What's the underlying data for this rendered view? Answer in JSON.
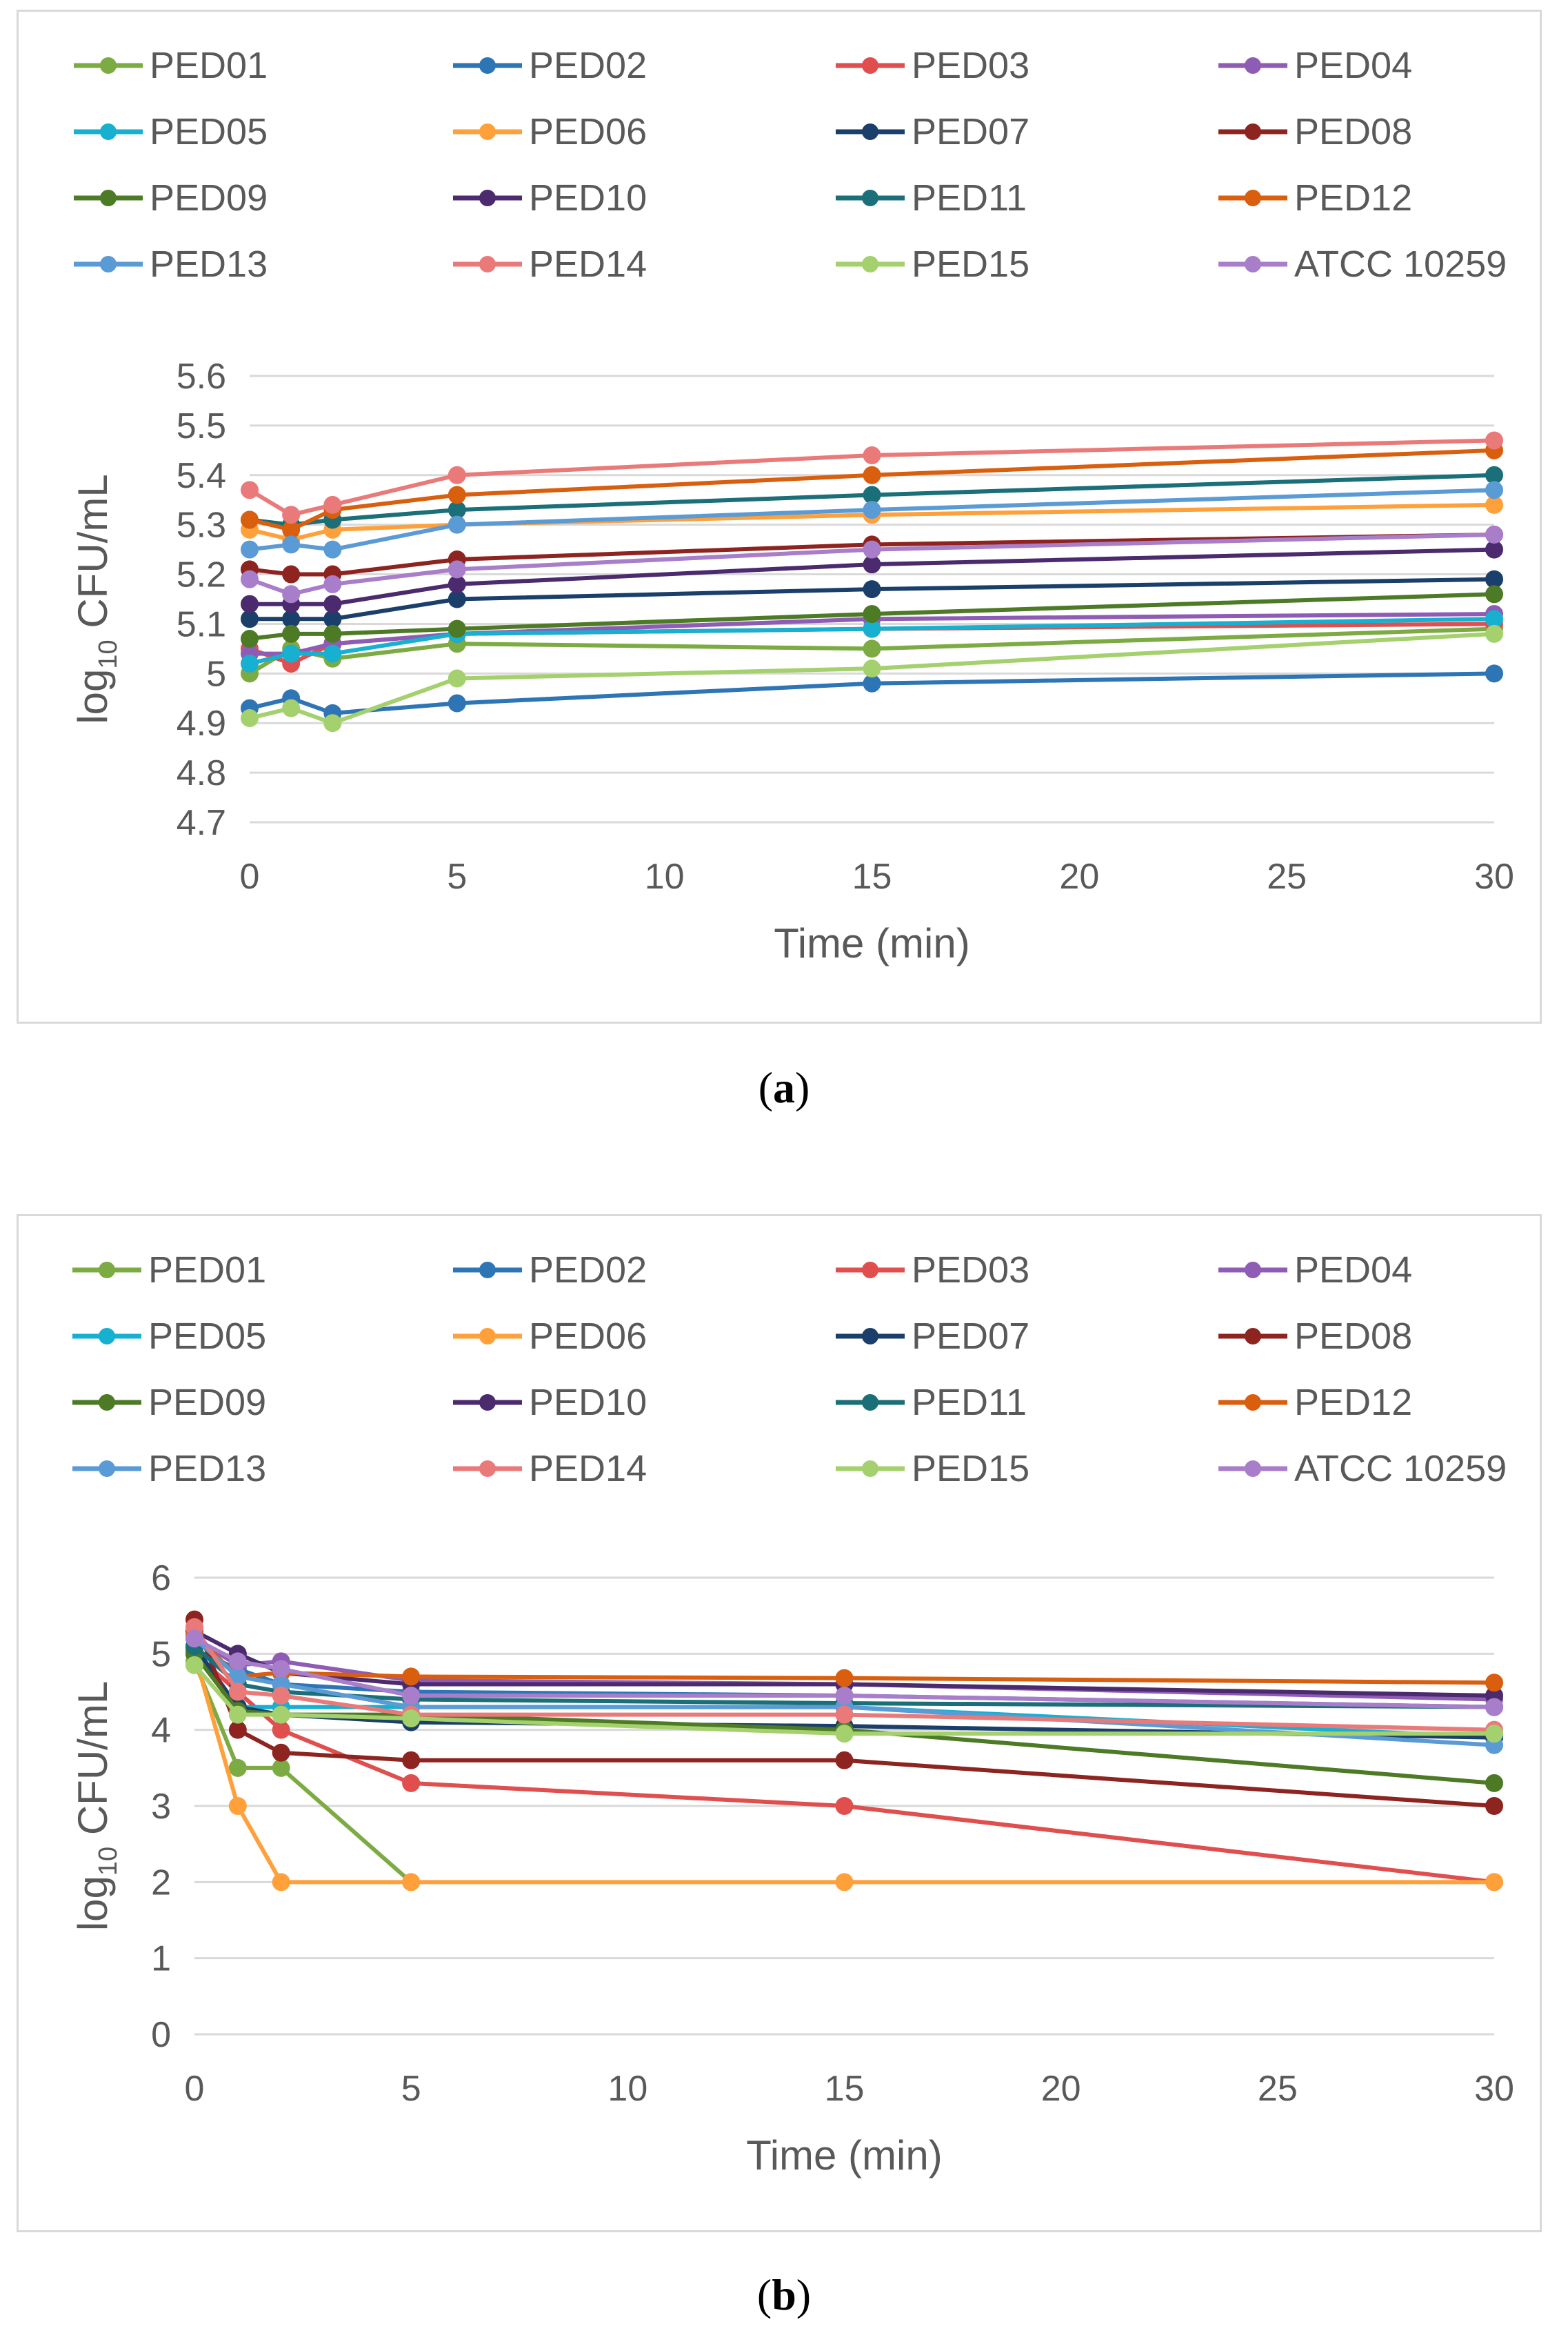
{
  "chart_data": [
    {
      "type": "line",
      "panel_label": "a",
      "xlabel": "Time (min)",
      "ylabel": "log10 CFU/mL",
      "ylabel_base": "log",
      "ylabel_sub": "10",
      "ylabel_rest": " CFU/mL",
      "xlim": [
        0,
        30
      ],
      "ylim": [
        4.7,
        5.6
      ],
      "yticks": [
        4.7,
        4.8,
        4.9,
        5,
        5.1,
        5.2,
        5.3,
        5.4,
        5.5,
        5.6
      ],
      "xticks": [
        0,
        5,
        10,
        15,
        20,
        25,
        30
      ],
      "grid": true,
      "legend_position": "top",
      "x": [
        0,
        1,
        2,
        5,
        15,
        30
      ],
      "series": [
        {
          "name": "PED01",
          "color": "#7dab43",
          "values": [
            5.0,
            5.05,
            5.03,
            5.06,
            5.05,
            5.09
          ]
        },
        {
          "name": "PED02",
          "color": "#2e75b6",
          "values": [
            4.93,
            4.95,
            4.92,
            4.94,
            4.98,
            5.0
          ]
        },
        {
          "name": "PED03",
          "color": "#e04e4e",
          "values": [
            5.05,
            5.02,
            5.06,
            5.08,
            5.09,
            5.1
          ]
        },
        {
          "name": "PED04",
          "color": "#8e5bb5",
          "values": [
            5.04,
            5.04,
            5.06,
            5.08,
            5.11,
            5.12
          ]
        },
        {
          "name": "PED05",
          "color": "#17b0d0",
          "values": [
            5.02,
            5.04,
            5.04,
            5.08,
            5.09,
            5.11
          ]
        },
        {
          "name": "PED06",
          "color": "#ffa03a",
          "values": [
            5.29,
            5.27,
            5.29,
            5.3,
            5.32,
            5.34
          ]
        },
        {
          "name": "PED07",
          "color": "#1a3f6b",
          "values": [
            5.11,
            5.11,
            5.11,
            5.15,
            5.17,
            5.19
          ]
        },
        {
          "name": "PED08",
          "color": "#8e2420",
          "values": [
            5.21,
            5.2,
            5.2,
            5.23,
            5.26,
            5.28
          ]
        },
        {
          "name": "PED09",
          "color": "#4d7a25",
          "values": [
            5.07,
            5.08,
            5.08,
            5.09,
            5.12,
            5.16
          ]
        },
        {
          "name": "PED10",
          "color": "#4b2a6e",
          "values": [
            5.14,
            5.14,
            5.14,
            5.18,
            5.22,
            5.25
          ]
        },
        {
          "name": "PED11",
          "color": "#1a6f78",
          "values": [
            5.31,
            5.3,
            5.31,
            5.33,
            5.36,
            5.4
          ]
        },
        {
          "name": "PED12",
          "color": "#d95f0e",
          "values": [
            5.31,
            5.29,
            5.33,
            5.36,
            5.4,
            5.45
          ]
        },
        {
          "name": "PED13",
          "color": "#5b9bd5",
          "values": [
            5.25,
            5.26,
            5.25,
            5.3,
            5.33,
            5.37
          ]
        },
        {
          "name": "PED14",
          "color": "#ea7a7a",
          "values": [
            5.37,
            5.32,
            5.34,
            5.4,
            5.44,
            5.47
          ]
        },
        {
          "name": "PED15",
          "color": "#a5d06e",
          "values": [
            4.91,
            4.93,
            4.9,
            4.99,
            5.01,
            5.08
          ]
        },
        {
          "name": "ATCC 10259",
          "color": "#a87dc9",
          "values": [
            5.19,
            5.16,
            5.18,
            5.21,
            5.25,
            5.28
          ]
        }
      ]
    },
    {
      "type": "line",
      "panel_label": "b",
      "xlabel": "Time (min)",
      "ylabel": "log10 CFU/mL",
      "ylabel_base": "log",
      "ylabel_sub": "10",
      "ylabel_rest": " CFU/mL",
      "xlim": [
        0,
        30
      ],
      "ylim": [
        0,
        6
      ],
      "yticks": [
        0,
        1,
        2,
        3,
        4,
        5,
        6
      ],
      "xticks": [
        0,
        5,
        10,
        15,
        20,
        25,
        30
      ],
      "grid": true,
      "legend_position": "top",
      "x": [
        0,
        1,
        2,
        5,
        15,
        30
      ],
      "series": [
        {
          "name": "PED01",
          "color": "#7dab43",
          "values": [
            4.9,
            3.5,
            3.5,
            2.0,
            null,
            null
          ]
        },
        {
          "name": "PED02",
          "color": "#2e75b6",
          "values": [
            5.05,
            4.8,
            4.6,
            4.5,
            4.45,
            4.3
          ]
        },
        {
          "name": "PED03",
          "color": "#e04e4e",
          "values": [
            5.0,
            4.5,
            4.0,
            3.3,
            3.0,
            2.0
          ]
        },
        {
          "name": "PED04",
          "color": "#8e5bb5",
          "values": [
            5.2,
            4.85,
            4.9,
            4.65,
            4.6,
            4.4
          ]
        },
        {
          "name": "PED05",
          "color": "#17b0d0",
          "values": [
            5.0,
            4.3,
            4.3,
            4.3,
            4.3,
            3.9
          ]
        },
        {
          "name": "PED06",
          "color": "#ffa03a",
          "values": [
            5.0,
            3.0,
            2.0,
            2.0,
            2.0,
            2.0
          ]
        },
        {
          "name": "PED07",
          "color": "#1a3f6b",
          "values": [
            5.1,
            4.3,
            4.2,
            4.1,
            4.05,
            3.9
          ]
        },
        {
          "name": "PED08",
          "color": "#8e2420",
          "values": [
            5.45,
            4.0,
            3.7,
            3.6,
            3.6,
            3.0
          ]
        },
        {
          "name": "PED09",
          "color": "#4d7a25",
          "values": [
            5.0,
            4.25,
            4.2,
            4.2,
            4.0,
            3.3
          ]
        },
        {
          "name": "PED10",
          "color": "#4b2a6e",
          "values": [
            5.3,
            5.0,
            4.75,
            4.6,
            4.6,
            4.45
          ]
        },
        {
          "name": "PED11",
          "color": "#1a6f78",
          "values": [
            5.1,
            4.6,
            4.5,
            4.4,
            4.35,
            4.3
          ]
        },
        {
          "name": "PED12",
          "color": "#d95f0e",
          "values": [
            5.25,
            4.7,
            4.75,
            4.7,
            4.68,
            4.62
          ]
        },
        {
          "name": "PED13",
          "color": "#5b9bd5",
          "values": [
            5.2,
            4.7,
            4.6,
            4.3,
            4.3,
            3.8
          ]
        },
        {
          "name": "PED14",
          "color": "#ea7a7a",
          "values": [
            5.35,
            4.5,
            4.45,
            4.2,
            4.2,
            4.0
          ]
        },
        {
          "name": "PED15",
          "color": "#a5d06e",
          "values": [
            4.85,
            4.2,
            4.2,
            4.15,
            3.95,
            3.95
          ]
        },
        {
          "name": "ATCC 10259",
          "color": "#a87dc9",
          "values": [
            5.2,
            4.9,
            4.8,
            4.45,
            4.45,
            4.3
          ]
        }
      ]
    }
  ]
}
